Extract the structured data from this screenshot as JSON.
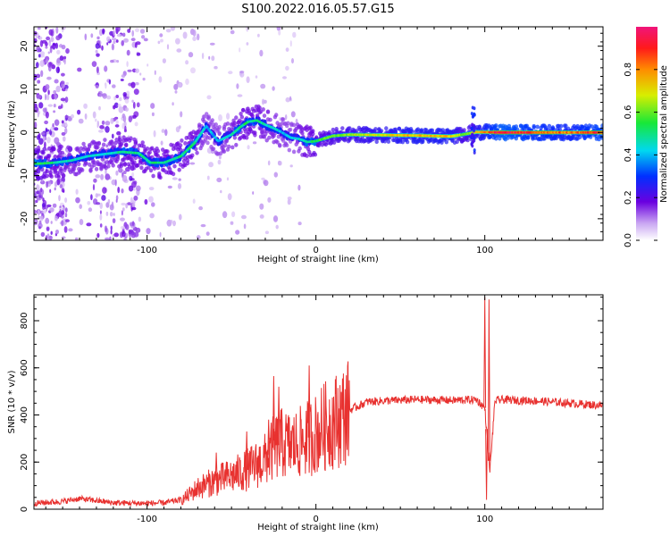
{
  "figure_title": "S100.2022.016.05.57.G15",
  "chart_data": [
    {
      "type": "heatmap",
      "xlabel": "Height of straight line (km)",
      "ylabel": "Frequency (Hz)",
      "xlim": [
        -167,
        170
      ],
      "ylim": [
        -25,
        24.5
      ],
      "x_ticks": [
        -100,
        0,
        100
      ],
      "x_tick_labels": [
        "-100",
        "0",
        "100"
      ],
      "y_ticks": [
        -20,
        -10,
        0,
        10,
        20
      ],
      "y_tick_labels": [
        "-20",
        "-10",
        "0",
        "10",
        "20"
      ],
      "colorbar": {
        "label": "Normalized spectral amplitude",
        "range": [
          0,
          1
        ],
        "ticks": [
          0.0,
          0.2,
          0.4,
          0.6,
          0.8
        ],
        "tick_labels": [
          "0.0",
          "0.2",
          "0.4",
          "0.6",
          "0.8"
        ]
      },
      "ridge": {
        "x": [
          -163,
          -155,
          -145,
          -135,
          -125,
          -115,
          -105,
          -98,
          -90,
          -80,
          -72,
          -65,
          -58,
          -50,
          -45,
          -40,
          -35,
          -30,
          -25,
          -20,
          -15,
          -10,
          -5,
          0,
          10,
          20,
          40,
          60,
          80,
          88,
          95,
          110,
          130,
          150,
          168
        ],
        "y": [
          -7.2,
          -7.0,
          -6.5,
          -5.5,
          -5,
          -4.5,
          -4.8,
          -7,
          -7,
          -5.5,
          -2.5,
          1.5,
          -2,
          -0.5,
          1.2,
          2.5,
          2.8,
          1.8,
          1,
          0,
          -1.2,
          -1.5,
          -2.2,
          -2,
          -0.8,
          -0.5,
          -0.6,
          -0.7,
          -0.9,
          -0.4,
          0.1,
          0,
          0,
          0,
          0
        ],
        "amplitude": [
          0.55,
          0.5,
          0.45,
          0.45,
          0.45,
          0.5,
          0.5,
          0.5,
          0.5,
          0.5,
          0.5,
          0.4,
          0.4,
          0.45,
          0.5,
          0.5,
          0.5,
          0.45,
          0.45,
          0.4,
          0.4,
          0.45,
          0.5,
          0.55,
          0.6,
          0.65,
          0.7,
          0.75,
          0.75,
          0.6,
          0.7,
          0.95,
          0.85,
          0.8,
          0.9
        ]
      }
    },
    {
      "type": "line",
      "xlabel": "Height of straight line (km)",
      "ylabel": "SNR (10 * v/v)",
      "xlim": [
        -167,
        170
      ],
      "ylim": [
        0,
        910
      ],
      "x_ticks": [
        -100,
        0,
        100
      ],
      "x_tick_labels": [
        "-100",
        "0",
        "100"
      ],
      "y_ticks": [
        0,
        200,
        400,
        600,
        800
      ],
      "y_tick_labels": [
        "0",
        "200",
        "400",
        "600",
        "800"
      ],
      "series": [
        {
          "color": "#e8312f",
          "x": [
            -167,
            -150,
            -140,
            -120,
            -100,
            -90,
            -80,
            -70,
            -60,
            -50,
            -40,
            -30,
            -25,
            -20,
            -15,
            -10,
            -5,
            0,
            5,
            10,
            15,
            20,
            30,
            40,
            60,
            80,
            95,
            100,
            103,
            106,
            110,
            130,
            150,
            170
          ],
          "y": [
            20,
            28,
            40,
            22,
            20,
            22,
            35,
            90,
            120,
            140,
            170,
            210,
            260,
            280,
            270,
            280,
            300,
            320,
            350,
            370,
            390,
            420,
            455,
            460,
            465,
            462,
            465,
            430,
            160,
            460,
            465,
            460,
            450,
            440
          ],
          "spikes": [
            {
              "x": -59,
              "y": 240
            },
            {
              "x": -41,
              "y": 330
            },
            {
              "x": -28,
              "y": 380
            },
            {
              "x": -25,
              "y": 565
            },
            {
              "x": -22,
              "y": 520
            },
            {
              "x": -4,
              "y": 610
            },
            {
              "x": 100,
              "y": 900
            },
            {
              "x": 102.5,
              "y": 890
            },
            {
              "x": 101,
              "y": 40
            }
          ]
        }
      ]
    }
  ]
}
